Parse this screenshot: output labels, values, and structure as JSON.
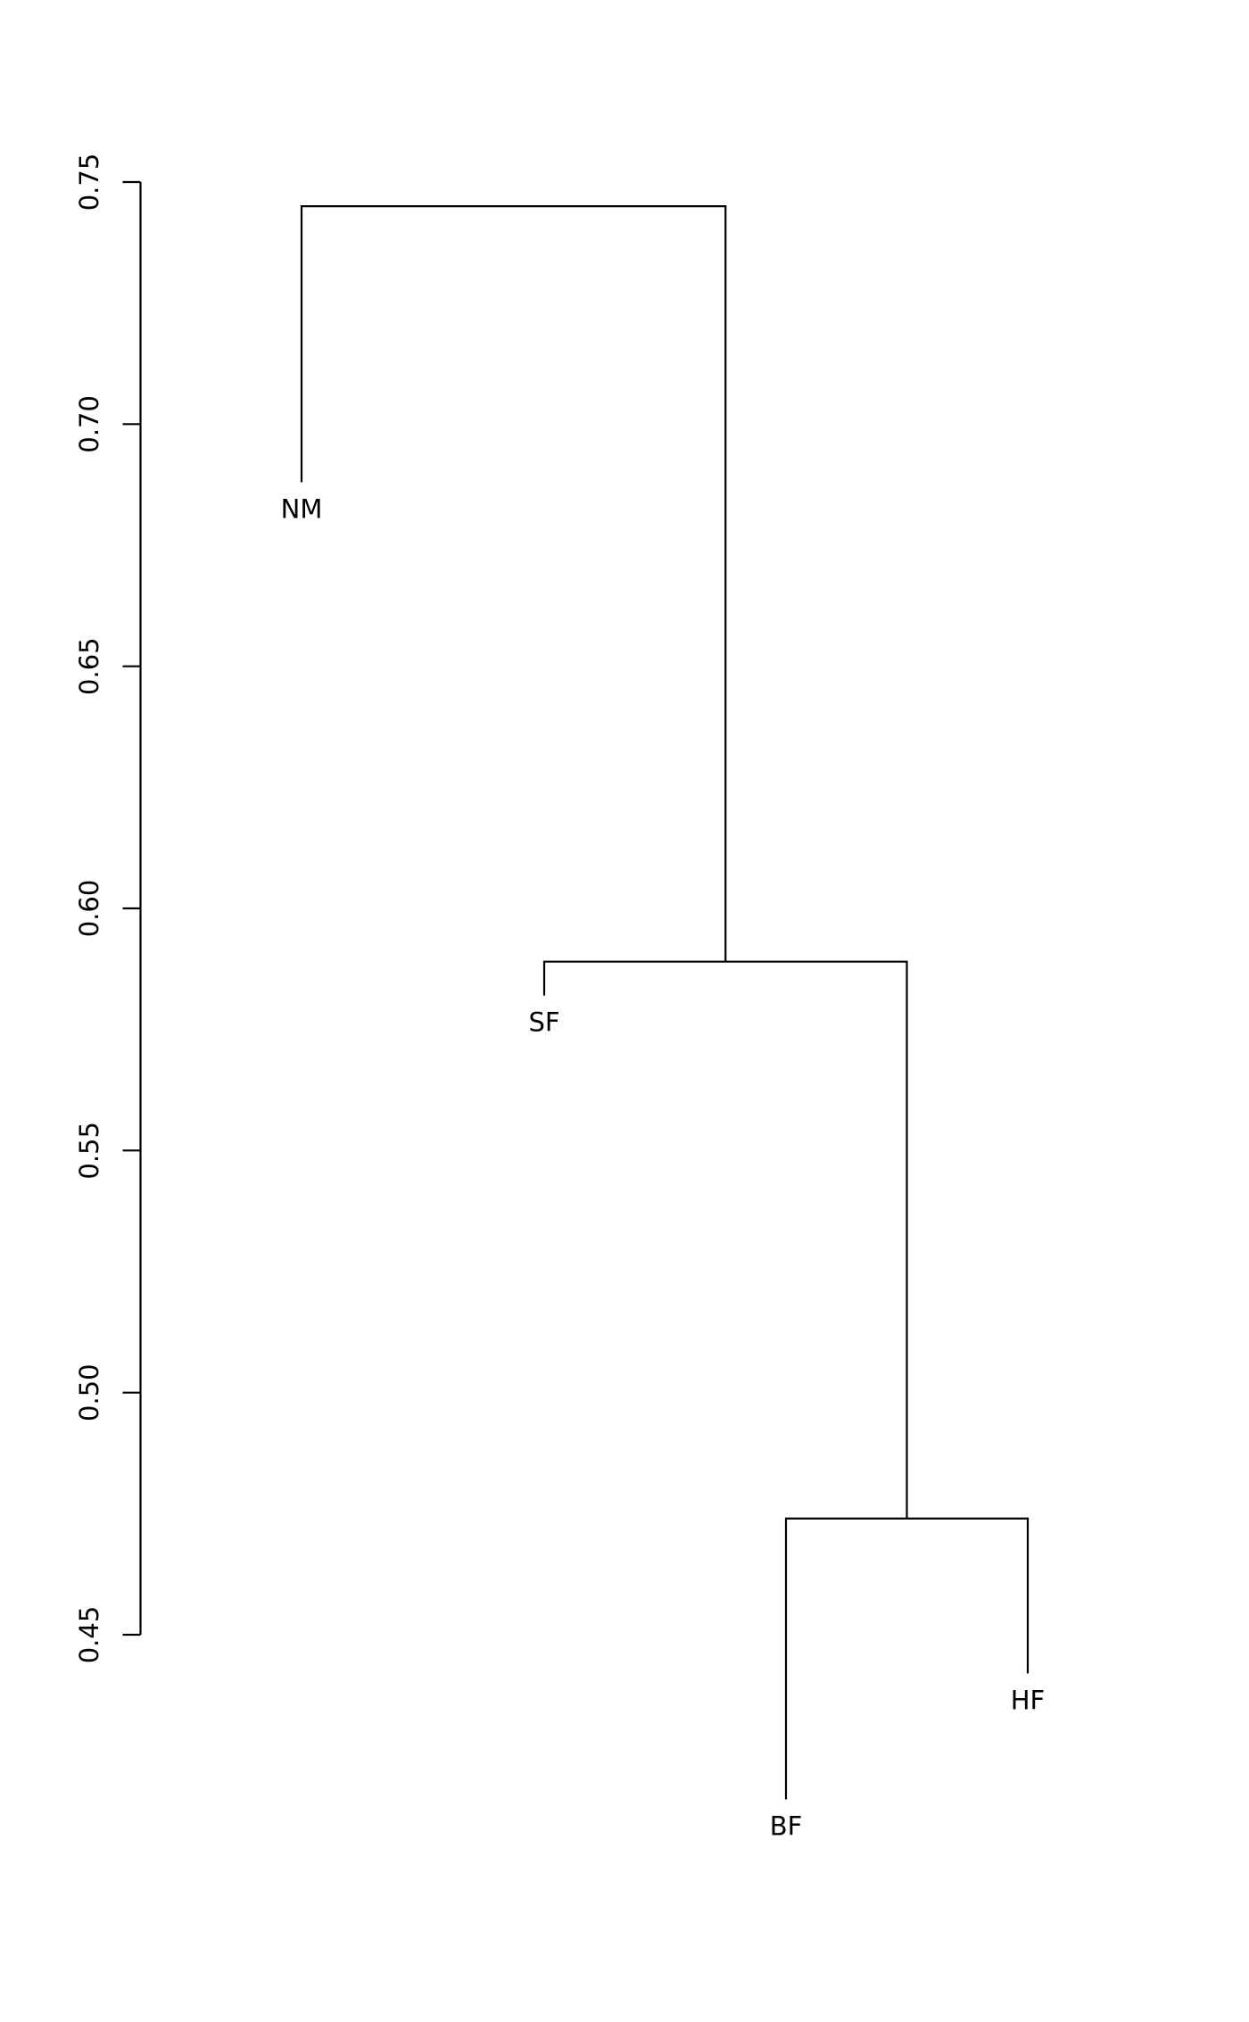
{
  "chart_data": {
    "type": "dendrogram",
    "title": "",
    "xlabel": "",
    "ylabel": "",
    "ylim": [
      0.45,
      0.75
    ],
    "y_ticks": [
      "0.45",
      "0.50",
      "0.55",
      "0.60",
      "0.65",
      "0.70",
      "0.75"
    ],
    "grid": false,
    "leaves": [
      {
        "label": "NM",
        "height": 0.688
      },
      {
        "label": "SF",
        "height": 0.582
      },
      {
        "label": "BF",
        "height": 0.416
      },
      {
        "label": "HF",
        "height": 0.442
      }
    ],
    "merges": [
      {
        "left": "BF",
        "right": "HF",
        "height": 0.474
      },
      {
        "left": "SF",
        "right": "BF+HF",
        "height": 0.589
      },
      {
        "left": "NM",
        "right": "SF+BF+HF",
        "height": 0.745
      }
    ],
    "line_color": "#000000"
  }
}
